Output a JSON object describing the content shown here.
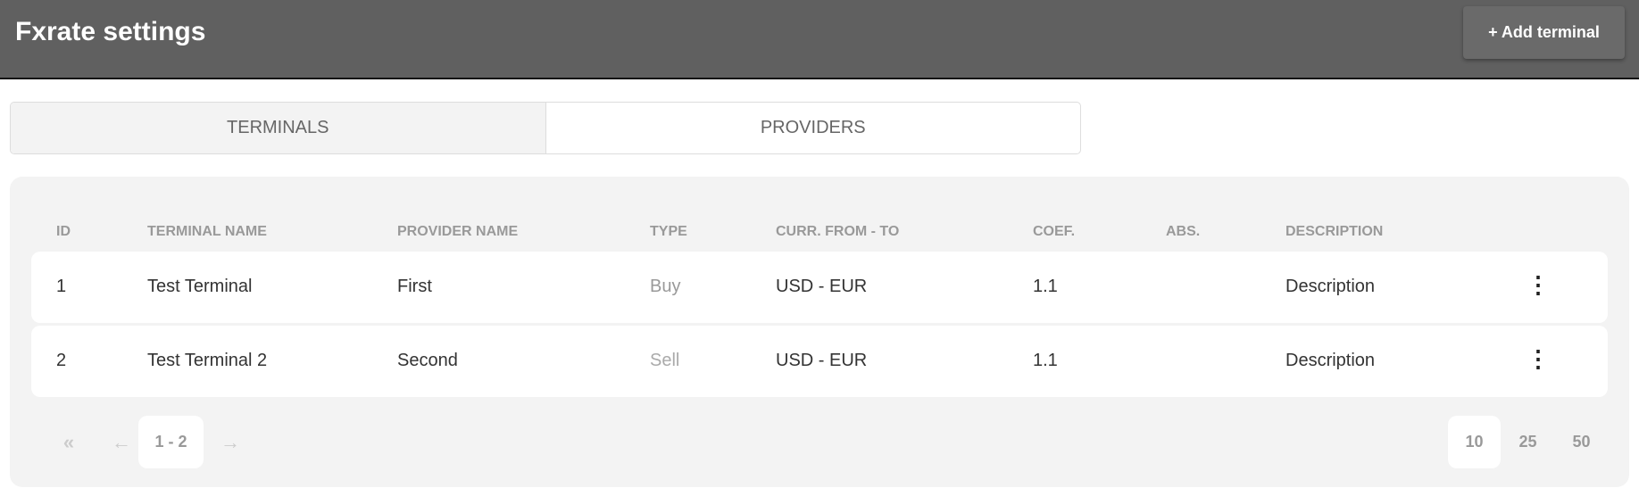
{
  "header": {
    "title": "Fxrate settings",
    "add_button": "+ Add terminal"
  },
  "tabs": [
    {
      "label": "TERMINALS",
      "active": true
    },
    {
      "label": "PROVIDERS",
      "active": false
    }
  ],
  "table": {
    "columns": [
      "ID",
      "TERMINAL NAME",
      "PROVIDER NAME",
      "TYPE",
      "CURR. FROM - TO",
      "COEF.",
      "ABS.",
      "DESCRIPTION"
    ],
    "rows": [
      {
        "id": "1",
        "terminal": "Test Terminal",
        "provider": "First",
        "type": "Buy",
        "curr": "USD - EUR",
        "coef": "1.1",
        "abs": "",
        "description": "Description"
      },
      {
        "id": "2",
        "terminal": "Test Terminal 2",
        "provider": "Second",
        "type": "Sell",
        "curr": "USD - EUR",
        "coef": "1.1",
        "abs": "",
        "description": "Description"
      }
    ]
  },
  "pagination": {
    "first": "«",
    "prev": "←",
    "range": "1 - 2",
    "next": "→",
    "page_sizes": [
      "10",
      "25",
      "50"
    ],
    "selected_size": "10"
  }
}
